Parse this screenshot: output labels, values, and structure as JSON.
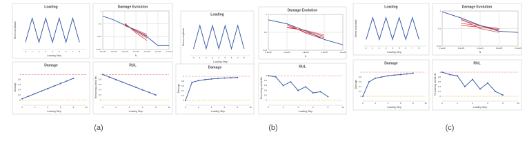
{
  "panel_labels": [
    "(a)",
    "(b)",
    "(c)"
  ],
  "chart_data": [
    {
      "type": "line",
      "title": "Loading",
      "xlabel": "Loading Step",
      "ylabel": "Stress amplitude",
      "x": [
        0,
        1,
        2,
        3,
        4,
        5,
        6,
        7,
        8
      ],
      "series": [
        {
          "color": "#3b5ea8",
          "values": [
            0,
            1,
            0,
            1,
            0,
            1,
            0,
            1,
            0
          ]
        }
      ],
      "xlim": [
        -0.5,
        9
      ],
      "ylim": [
        -0.3,
        1.3
      ],
      "xticks": [
        0,
        1,
        2,
        3,
        4,
        5,
        6,
        7,
        8
      ],
      "grid": false
    },
    {
      "type": "line",
      "title": "Damage Evolution",
      "xlabel": "N",
      "x": [
        10,
        100,
        1000,
        10000,
        100000,
        1000000,
        10000000
      ],
      "xscale": "log",
      "yscale": "log",
      "xlim": [
        10,
        10000000
      ],
      "ylim": [
        0.001,
        1
      ],
      "xticks": [
        {
          "value": 10,
          "label": "1.E+01"
        },
        {
          "value": 100,
          "label": "1.E+02"
        },
        {
          "value": 1000,
          "label": "1.E+03"
        },
        {
          "value": 10000,
          "label": "1.E+04"
        },
        {
          "value": 100000,
          "label": "1.E+05"
        },
        {
          "value": 1000000,
          "label": "1.E+06"
        },
        {
          "value": 10000000,
          "label": "1.E+07"
        }
      ],
      "yticks": [
        1,
        0.1,
        0.01,
        0.001
      ],
      "grid": true,
      "series": [
        {
          "color": "#e03030",
          "values": [
            null,
            null,
            0.1,
            0.025,
            0.008,
            null,
            null
          ]
        },
        {
          "color": "#e03030",
          "values": [
            null,
            null,
            0.09,
            0.03,
            0.012,
            null,
            null
          ]
        },
        {
          "color": "#e03030",
          "values": [
            null,
            null,
            0.07,
            0.035,
            0.015,
            null,
            null
          ]
        },
        {
          "color": "#e03030",
          "values": [
            null,
            null,
            0.11,
            0.02,
            0.005,
            null,
            null
          ]
        },
        {
          "color": "#3b5ea8",
          "values": [
            0.4,
            0.2,
            0.08,
            0.03,
            0.01,
            0.002,
            0.002
          ]
        }
      ]
    },
    {
      "type": "line",
      "title": "Damage",
      "xlabel": "Loading Step",
      "ylabel": "Damage",
      "x": [
        0,
        1,
        2,
        3,
        4,
        5,
        6,
        7,
        8
      ],
      "series": [
        {
          "color": "#3b5ea8",
          "marker": true,
          "values": [
            0.05,
            0.15,
            0.25,
            0.35,
            0.45,
            0.55,
            0.65,
            0.75,
            0.85
          ]
        }
      ],
      "xlim": [
        0,
        10
      ],
      "ylim": [
        -0.2,
        1.2
      ],
      "xticks": [
        0,
        2,
        4,
        6,
        8,
        10
      ],
      "yticks": [
        0,
        0.2,
        0.4,
        0.6,
        0.8,
        1
      ],
      "grid": false,
      "reference_lines": [
        {
          "value": 1,
          "color": "#f0a0a0"
        },
        {
          "value": 0,
          "color": "#f0d060"
        }
      ]
    },
    {
      "type": "line",
      "title": "RUL",
      "xlabel": "Loading Step",
      "ylabel": "Remaining useful life",
      "x": [
        0,
        1,
        2,
        3,
        4,
        5,
        6,
        7,
        8
      ],
      "series": [
        {
          "color": "#3b5ea8",
          "marker": true,
          "values": [
            1,
            0.9,
            0.8,
            0.7,
            0.6,
            0.5,
            0.4,
            0.3,
            0.2
          ]
        }
      ],
      "xlim": [
        0,
        10
      ],
      "ylim": [
        -0.2,
        1.2
      ],
      "xticks": [
        0,
        2,
        4,
        6,
        8,
        10
      ],
      "yticks": [
        0,
        0.2,
        0.4,
        0.6,
        0.8,
        1
      ],
      "grid": false,
      "reference_lines": [
        {
          "value": 1,
          "color": "#f0a0a0"
        },
        {
          "value": 0,
          "color": "#f0d060"
        }
      ]
    },
    {
      "type": "line",
      "title": "Loading",
      "xlabel": "Loading Step",
      "ylabel": "Stress amplitude",
      "x": [
        0,
        1,
        2,
        3,
        4,
        5,
        6,
        7,
        8
      ],
      "series": [
        {
          "color": "#3b5ea8",
          "values": [
            0,
            1,
            0,
            1,
            0,
            1,
            0,
            1,
            0
          ]
        }
      ],
      "xlim": [
        -0.5,
        9
      ],
      "ylim": [
        -0.3,
        1.3
      ],
      "xticks": [
        0,
        1,
        2,
        3,
        4,
        5,
        6,
        7,
        8
      ],
      "grid": false
    },
    {
      "type": "line",
      "title": "Damage Evolution",
      "xlabel": "N",
      "x": [
        100,
        1000,
        10000,
        100000,
        1000000
      ],
      "xscale": "log",
      "yscale": "log",
      "xlim": [
        100,
        1000000
      ],
      "ylim": [
        0.01,
        1
      ],
      "xticks": [
        {
          "value": 100,
          "label": "1.E+02"
        },
        {
          "value": 1000,
          "label": "1.E+03"
        },
        {
          "value": 10000,
          "label": "1.E+04"
        },
        {
          "value": 100000,
          "label": "1.E+05"
        },
        {
          "value": 1000000,
          "label": "1.E+06"
        }
      ],
      "yticks": [
        1,
        0.1,
        0.01
      ],
      "grid": true,
      "series": [
        {
          "color": "#e03030",
          "values": [
            null,
            0.25,
            0.1,
            0.05,
            null
          ]
        },
        {
          "color": "#e03030",
          "values": [
            null,
            0.2,
            0.12,
            0.06,
            null
          ]
        },
        {
          "color": "#e03030",
          "values": [
            null,
            0.3,
            0.09,
            0.04,
            null
          ]
        },
        {
          "color": "#e03030",
          "values": [
            null,
            0.18,
            0.13,
            0.07,
            null
          ]
        },
        {
          "color": "#3b5ea8",
          "values": [
            0.5,
            0.3,
            0.12,
            0.04,
            0.02
          ]
        }
      ]
    },
    {
      "type": "line",
      "title": "Damage",
      "xlabel": "Loading Step",
      "ylabel": "Damage",
      "x": [
        0,
        1,
        2,
        3,
        4,
        5,
        6,
        7,
        8
      ],
      "series": [
        {
          "color": "#3b5ea8",
          "marker": true,
          "values": [
            0,
            0.75,
            0.82,
            0.86,
            0.89,
            0.91,
            0.93,
            0.94,
            0.95
          ]
        }
      ],
      "xlim": [
        0,
        10
      ],
      "ylim": [
        -0.2,
        1.2
      ],
      "xticks": [
        0,
        2,
        4,
        6,
        8,
        10
      ],
      "yticks": [
        0,
        0.2,
        0.4,
        0.6,
        0.8,
        1
      ],
      "grid": false,
      "reference_lines": [
        {
          "value": 1,
          "color": "#f0a0a0"
        },
        {
          "value": 0,
          "color": "#f0d060"
        }
      ]
    },
    {
      "type": "line",
      "title": "RUL",
      "xlabel": "Loading Step",
      "ylabel": "Remaining useful life",
      "x": [
        0,
        1,
        2,
        3,
        4,
        5,
        6,
        7,
        8
      ],
      "series": [
        {
          "color": "#3b5ea8",
          "marker": true,
          "values": [
            1,
            0.95,
            0.6,
            0.75,
            0.4,
            0.55,
            0.3,
            0.35,
            0.15
          ]
        }
      ],
      "xlim": [
        0,
        10
      ],
      "ylim": [
        -0.2,
        1.2
      ],
      "xticks": [
        0,
        2,
        4,
        6,
        8,
        10
      ],
      "yticks": [
        0,
        0.2,
        0.4,
        0.6,
        0.8,
        1
      ],
      "grid": false,
      "reference_lines": [
        {
          "value": 1,
          "color": "#f0a0a0"
        },
        {
          "value": 0,
          "color": "#f0d060"
        }
      ]
    },
    {
      "type": "line",
      "title": "Loading",
      "xlabel": "Loading Step",
      "ylabel": "Stress amplitude",
      "x": [
        0,
        1,
        2,
        3,
        4,
        5,
        6,
        7,
        8
      ],
      "series": [
        {
          "color": "#3b5ea8",
          "values": [
            0,
            1,
            0,
            1,
            0,
            1,
            0,
            1,
            0
          ]
        }
      ],
      "xlim": [
        -0.5,
        9
      ],
      "ylim": [
        -0.3,
        1.3
      ],
      "xticks": [
        0,
        1,
        2,
        3,
        4,
        5,
        6,
        7,
        8
      ],
      "grid": false
    },
    {
      "type": "line",
      "title": "Damage Evolution",
      "xlabel": "N",
      "x": [
        100,
        1000,
        10000,
        100000,
        1000000
      ],
      "xscale": "log",
      "yscale": "log",
      "xlim": [
        100,
        1000000
      ],
      "ylim": [
        0.01,
        1
      ],
      "xticks": [
        {
          "value": 100,
          "label": "1.E+02"
        },
        {
          "value": 1000,
          "label": "1.E+03"
        },
        {
          "value": 10000,
          "label": "1.E+04"
        },
        {
          "value": 100000,
          "label": "1.E+05"
        },
        {
          "value": 1000000,
          "label": "1.E+06"
        }
      ],
      "yticks": [
        1,
        0.1,
        0.01
      ],
      "grid": true,
      "series": [
        {
          "color": "#e03030",
          "values": [
            null,
            0.3,
            0.15,
            0.08,
            null
          ]
        },
        {
          "color": "#e03030",
          "values": [
            null,
            0.15,
            0.12,
            0.09,
            null
          ]
        },
        {
          "color": "#e03030",
          "values": [
            null,
            0.35,
            0.1,
            0.06,
            null
          ]
        },
        {
          "color": "#e03030",
          "values": [
            null,
            0.2,
            0.14,
            0.1,
            null
          ]
        },
        {
          "color": "#3b5ea8",
          "values": [
            0.9,
            0.4,
            0.15,
            0.07,
            0.06
          ]
        }
      ]
    },
    {
      "type": "line",
      "title": "Damage",
      "xlabel": "Loading Step",
      "ylabel": "Damage",
      "x": [
        0,
        1,
        2,
        3,
        4,
        5,
        6,
        7,
        8
      ],
      "series": [
        {
          "color": "#3b5ea8",
          "marker": true,
          "values": [
            0,
            0.6,
            0.75,
            0.8,
            0.85,
            0.88,
            0.9,
            0.93,
            0.96
          ]
        }
      ],
      "xlim": [
        0,
        10
      ],
      "ylim": [
        -0.2,
        1.2
      ],
      "xticks": [
        0,
        2,
        4,
        6,
        8,
        10
      ],
      "yticks": [
        0,
        0.2,
        0.4,
        0.6,
        0.8,
        1
      ],
      "grid": false,
      "reference_lines": [
        {
          "value": 1,
          "color": "#f0a0a0"
        },
        {
          "value": 0,
          "color": "#f0d060"
        }
      ]
    },
    {
      "type": "line",
      "title": "RUL",
      "xlabel": "Loading Step",
      "ylabel": "Remaining useful life",
      "x": [
        0,
        1,
        2,
        3,
        4,
        5,
        6,
        7,
        8
      ],
      "series": [
        {
          "color": "#3b5ea8",
          "marker": true,
          "values": [
            1,
            0.9,
            0.85,
            0.4,
            0.7,
            0.3,
            0.55,
            0.2,
            0.05
          ]
        }
      ],
      "xlim": [
        0,
        10
      ],
      "ylim": [
        -0.2,
        1.2
      ],
      "xticks": [
        0,
        2,
        4,
        6,
        8,
        10
      ],
      "yticks": [
        0,
        0.2,
        0.4,
        0.6,
        0.8,
        1
      ],
      "grid": false,
      "reference_lines": [
        {
          "value": 1,
          "color": "#f0a0a0"
        },
        {
          "value": 0,
          "color": "#f0d060"
        }
      ]
    }
  ]
}
